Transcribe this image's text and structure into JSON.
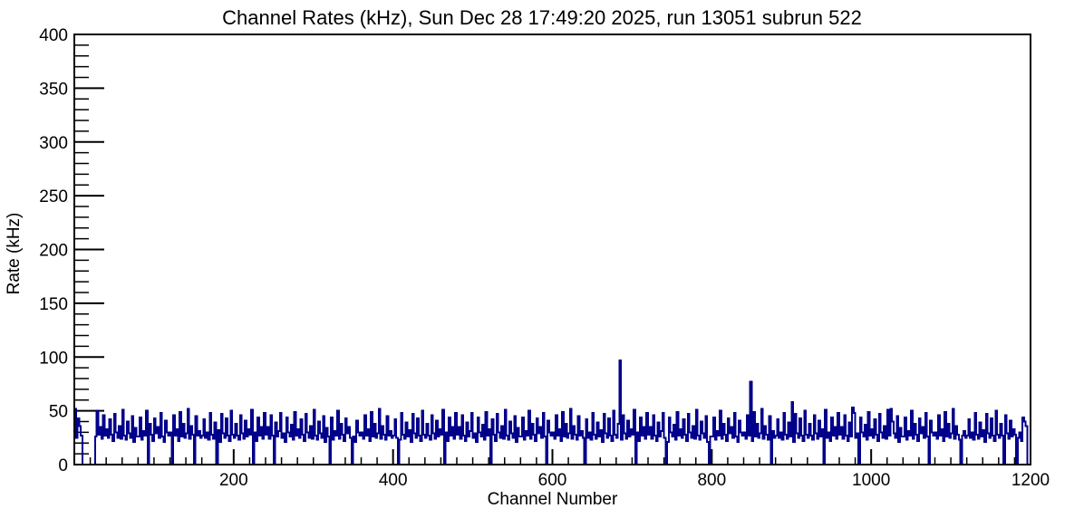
{
  "chart_data": {
    "type": "bar",
    "subtype": "step-histogram",
    "title": "Channel Rates (kHz), Sun Dec 28 17:49:20 2025, run 13051 subrun 522",
    "xlabel": "Channel Number",
    "ylabel": "Rate (kHz)",
    "xlim": [
      0,
      1200
    ],
    "ylim": [
      0,
      400
    ],
    "x_major_ticks": [
      200,
      400,
      600,
      800,
      1000,
      1200
    ],
    "x_minor_step": 20,
    "y_major_ticks": [
      0,
      50,
      100,
      150,
      200,
      250,
      300,
      350,
      400
    ],
    "y_minor_step": 10,
    "grid": false,
    "legend": null,
    "line_color": "#00008B",
    "axis_color": "#000000",
    "background_color": "#ffffff",
    "x_start": 0,
    "bin_width_channels": 2,
    "values": [
      52,
      25,
      43,
      36,
      27,
      0,
      0,
      0,
      0,
      0,
      0,
      0,
      0,
      26,
      50,
      28,
      35,
      24,
      46,
      27,
      33,
      25,
      42,
      28,
      22,
      47,
      30,
      25,
      36,
      24,
      51,
      27,
      23,
      40,
      29,
      25,
      45,
      21,
      34,
      26,
      26,
      44,
      23,
      31,
      27,
      50,
      0,
      38,
      28,
      22,
      43,
      29,
      35,
      25,
      48,
      26,
      21,
      41,
      30,
      27,
      30,
      0,
      46,
      27,
      33,
      22,
      49,
      26,
      38,
      25,
      29,
      52,
      24,
      36,
      28,
      0,
      45,
      27,
      31,
      25,
      27,
      42,
      25,
      30,
      23,
      48,
      28,
      24,
      39,
      0,
      32,
      21,
      47,
      29,
      25,
      43,
      27,
      22,
      50,
      28,
      25,
      38,
      27,
      23,
      46,
      29,
      24,
      41,
      26,
      33,
      28,
      51,
      0,
      30,
      22,
      44,
      27,
      35,
      24,
      48,
      28,
      35,
      24,
      46,
      27,
      0,
      39,
      26,
      31,
      48,
      25,
      29,
      21,
      44,
      30,
      26,
      37,
      23,
      49,
      27,
      33,
      25,
      42,
      28,
      22,
      47,
      30,
      25,
      36,
      24,
      51,
      27,
      23,
      40,
      29,
      25,
      45,
      21,
      34,
      26,
      0,
      44,
      23,
      31,
      27,
      50,
      24,
      38,
      28,
      22,
      43,
      29,
      35,
      25,
      0,
      26,
      21,
      41,
      30,
      27,
      30,
      24,
      46,
      27,
      33,
      22,
      49,
      26,
      38,
      25,
      29,
      52,
      24,
      36,
      28,
      23,
      45,
      27,
      31,
      25,
      27,
      42,
      25,
      0,
      23,
      48,
      28,
      24,
      39,
      26,
      32,
      21,
      47,
      29,
      25,
      43,
      27,
      22,
      50,
      28,
      25,
      38,
      27,
      23,
      46,
      29,
      24,
      41,
      26,
      33,
      28,
      51,
      0,
      30,
      22,
      44,
      27,
      35,
      24,
      48,
      28,
      35,
      24,
      46,
      27,
      22,
      39,
      26,
      31,
      48,
      25,
      29,
      21,
      44,
      30,
      26,
      37,
      23,
      49,
      27,
      33,
      0,
      42,
      28,
      22,
      47,
      30,
      25,
      36,
      24,
      51,
      27,
      23,
      40,
      29,
      25,
      45,
      21,
      34,
      26,
      26,
      44,
      23,
      31,
      27,
      50,
      24,
      38,
      28,
      22,
      43,
      29,
      35,
      25,
      48,
      26,
      0,
      41,
      30,
      27,
      30,
      24,
      46,
      27,
      33,
      22,
      49,
      26,
      38,
      25,
      29,
      52,
      24,
      36,
      28,
      23,
      45,
      27,
      31,
      25,
      0,
      42,
      25,
      30,
      23,
      48,
      28,
      24,
      39,
      26,
      32,
      21,
      47,
      29,
      25,
      43,
      27,
      22,
      50,
      28,
      25,
      38,
      97,
      23,
      46,
      29,
      24,
      41,
      26,
      33,
      28,
      51,
      0,
      30,
      22,
      44,
      27,
      35,
      24,
      48,
      28,
      35,
      24,
      46,
      27,
      22,
      39,
      26,
      31,
      48,
      25,
      0,
      21,
      44,
      30,
      26,
      37,
      23,
      49,
      27,
      33,
      25,
      42,
      28,
      22,
      47,
      30,
      25,
      36,
      24,
      51,
      27,
      23,
      40,
      29,
      25,
      45,
      21,
      0,
      26,
      26,
      44,
      23,
      31,
      27,
      50,
      24,
      38,
      28,
      22,
      43,
      29,
      35,
      25,
      48,
      26,
      21,
      41,
      30,
      27,
      30,
      24,
      46,
      27,
      77,
      22,
      49,
      26,
      38,
      25,
      29,
      52,
      24,
      36,
      28,
      23,
      45,
      0,
      31,
      25,
      27,
      42,
      25,
      30,
      23,
      48,
      28,
      24,
      39,
      26,
      58,
      21,
      47,
      29,
      25,
      43,
      27,
      22,
      50,
      28,
      25,
      38,
      27,
      23,
      46,
      29,
      24,
      41,
      26,
      33,
      0,
      51,
      25,
      30,
      22,
      44,
      27,
      35,
      24,
      48,
      28,
      35,
      24,
      46,
      27,
      22,
      39,
      26,
      53,
      48,
      25,
      29,
      0,
      44,
      30,
      26,
      37,
      23,
      49,
      27,
      33,
      25,
      42,
      28,
      22,
      47,
      30,
      25,
      36,
      24,
      51,
      27,
      52,
      40,
      29,
      25,
      45,
      21,
      34,
      26,
      26,
      44,
      23,
      31,
      27,
      50,
      24,
      38,
      28,
      22,
      43,
      29,
      35,
      25,
      48,
      26,
      0,
      41,
      30,
      27,
      30,
      24,
      46,
      27,
      33,
      22,
      49,
      26,
      38,
      25,
      29,
      52,
      24,
      36,
      28,
      23,
      0,
      27,
      31,
      25,
      27,
      42,
      25,
      30,
      23,
      48,
      28,
      24,
      39,
      26,
      32,
      21,
      47,
      29,
      25,
      43,
      27,
      22,
      50,
      28,
      25,
      38,
      27,
      0,
      46,
      29,
      24,
      41,
      26,
      33,
      28,
      0,
      25,
      30,
      22,
      44,
      40,
      36,
      0,
      0
    ]
  }
}
